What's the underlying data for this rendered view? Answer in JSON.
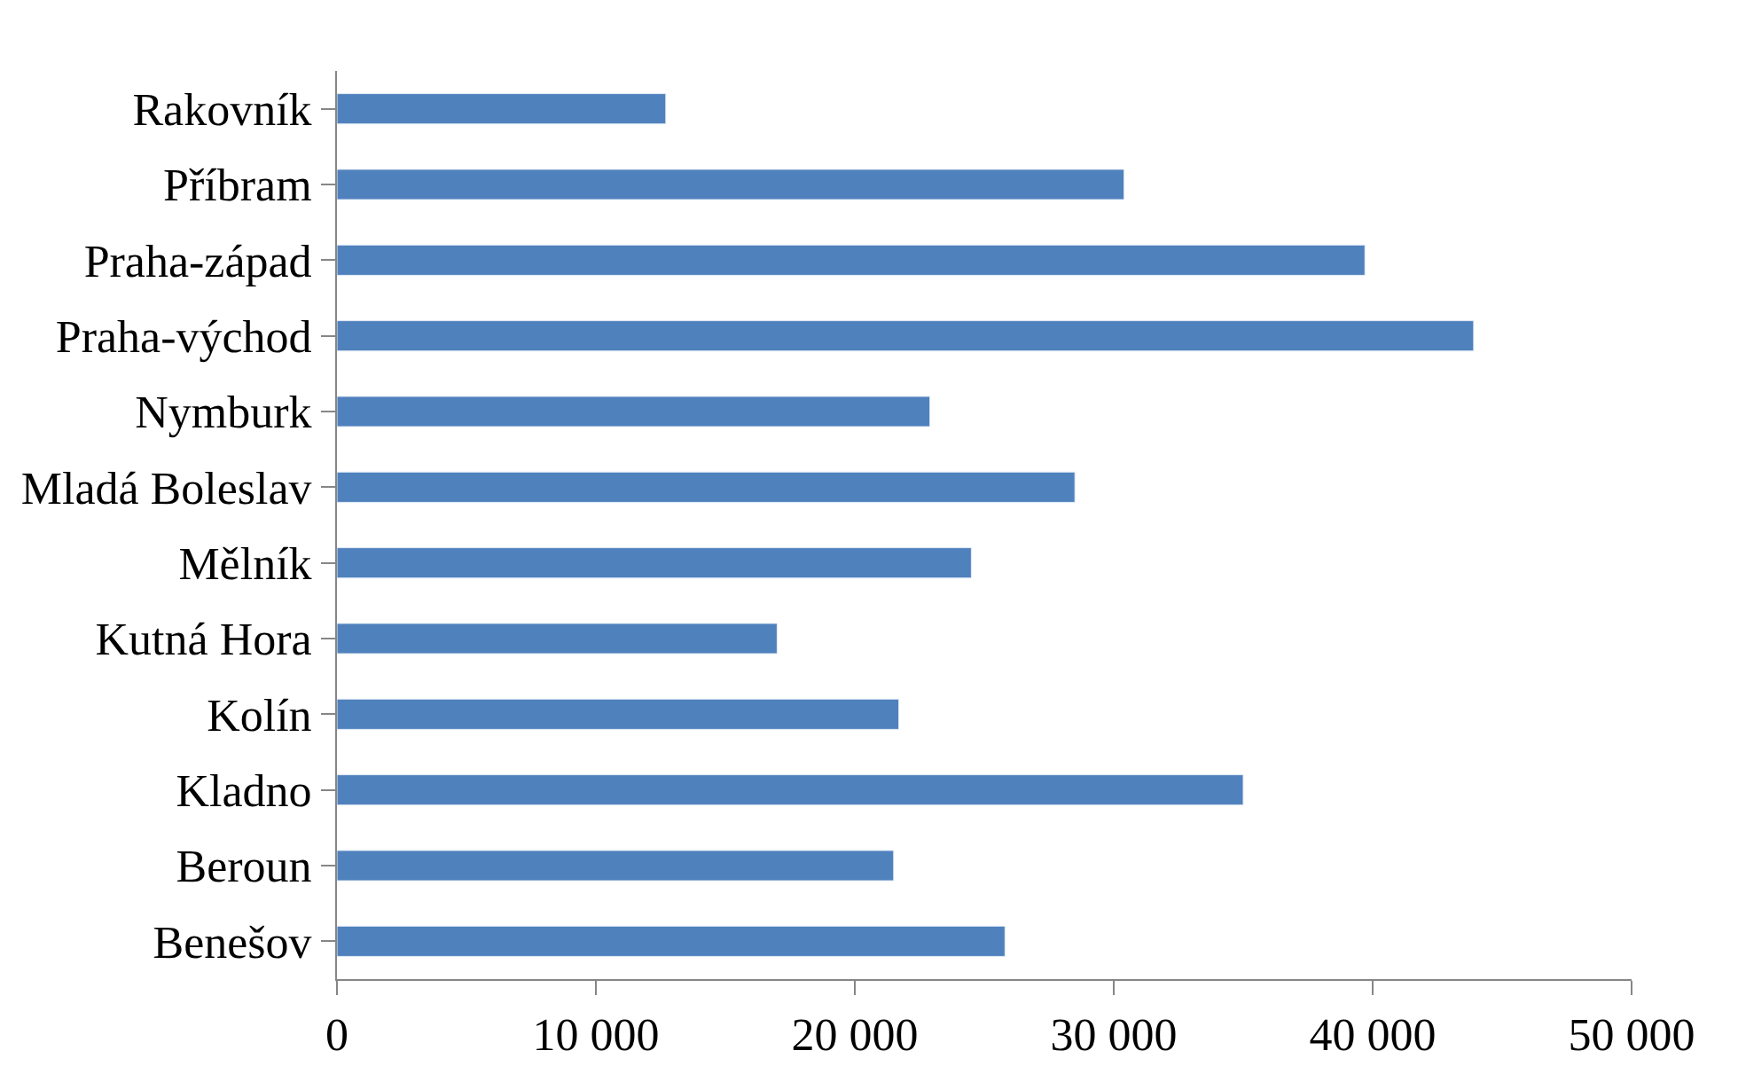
{
  "chart_data": {
    "type": "bar",
    "orientation": "horizontal",
    "categories": [
      "Rakovník",
      "Příbram",
      "Praha-západ",
      "Praha-východ",
      "Nymburk",
      "Mladá Boleslav",
      "Mělník",
      "Kutná Hora",
      "Kolín",
      "Kladno",
      "Beroun",
      "Benešov"
    ],
    "values": [
      12700,
      30400,
      39700,
      43900,
      22900,
      28500,
      24500,
      17000,
      21700,
      35000,
      21500,
      25800
    ],
    "color": "#4f81bd",
    "xlim": [
      0,
      50000
    ],
    "xticks": [
      {
        "value": 0,
        "label": "0"
      },
      {
        "value": 10000,
        "label": "10 000"
      },
      {
        "value": 20000,
        "label": "20 000"
      },
      {
        "value": 30000,
        "label": "30 000"
      },
      {
        "value": 40000,
        "label": "40 000"
      },
      {
        "value": 50000,
        "label": "50 000"
      }
    ]
  }
}
